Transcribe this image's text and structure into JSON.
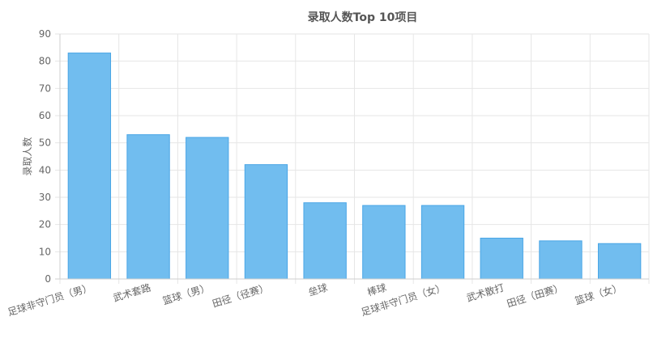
{
  "chart_data": {
    "type": "bar",
    "title": "录取人数Top 10项目",
    "xlabel": "",
    "ylabel": "录取人数",
    "ylim": [
      0,
      90
    ],
    "yticks": [
      0,
      10,
      20,
      30,
      40,
      50,
      60,
      70,
      80,
      90
    ],
    "grid": true,
    "legend": "none",
    "bar_color": "#71bdef",
    "bar_border_color": "#4aa6e6",
    "categories": [
      "足球非守门员（男）",
      "武术套路",
      "篮球（男）",
      "田径（径赛）",
      "垒球",
      "棒球",
      "足球非守门员（女）",
      "武术散打",
      "田径（田赛）",
      "篮球（女）"
    ],
    "values": [
      83,
      53,
      52,
      42,
      28,
      27,
      27,
      15,
      14,
      13
    ]
  }
}
